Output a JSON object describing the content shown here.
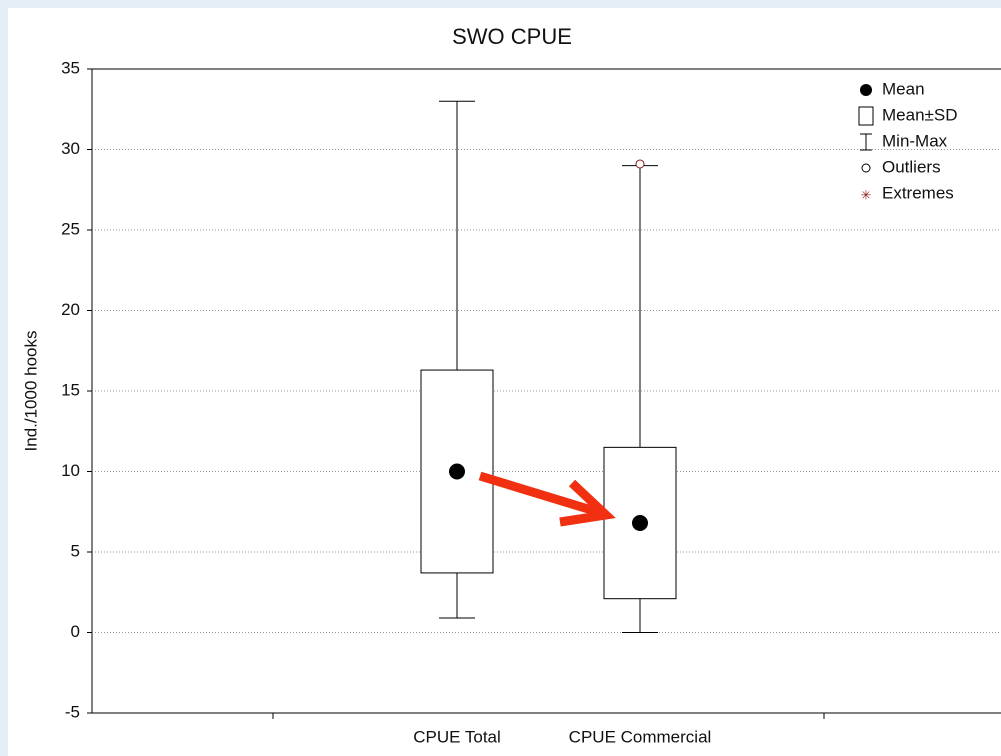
{
  "chart_data": {
    "type": "box",
    "title": "SWO CPUE",
    "y_label": "Ind./1000 hooks",
    "categories": [
      "CPUE Total",
      "CPUE Commercial"
    ],
    "mean": [
      10,
      6.8
    ],
    "sd": [
      6.3,
      4.7
    ],
    "min": [
      0.9,
      0
    ],
    "max": [
      33,
      29
    ],
    "outliers": [
      [],
      [
        29.1
      ]
    ],
    "ylim": [
      -5,
      35
    ],
    "yticks": [
      -5,
      0,
      5,
      10,
      15,
      20,
      25,
      30,
      35
    ],
    "grid": true,
    "legend_position": "upper right",
    "legend": [
      "Mean",
      "Mean±SD",
      "Min-Max",
      "Outliers",
      "Extremes"
    ],
    "outlier_color": "#8b1a1a"
  }
}
